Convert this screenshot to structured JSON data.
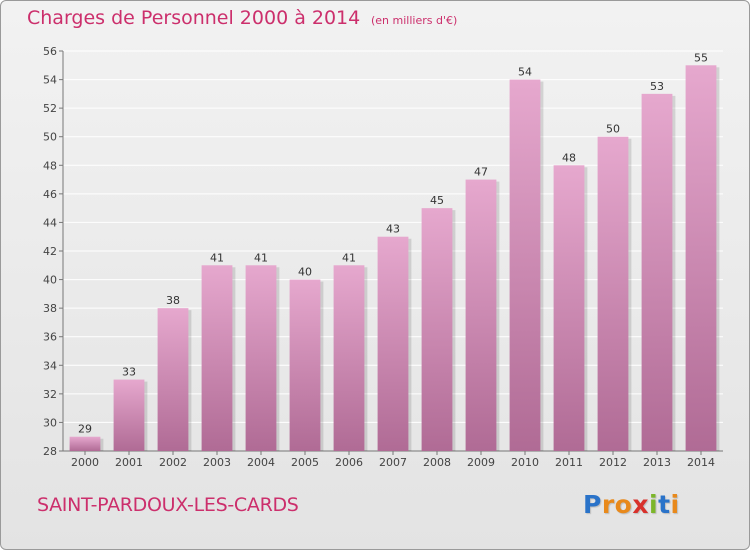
{
  "header": {
    "title": "Charges de Personnel 2000 à 2014",
    "subtitle": "(en milliers d'€)"
  },
  "footer": {
    "commune": "SAINT-PARDOUX-LES-CARDS",
    "logo_letters": [
      "P",
      "r",
      "o",
      "x",
      "i",
      "t",
      "i"
    ],
    "logo_colors": [
      "#2a73c9",
      "#e8891b",
      "#e8891b",
      "#d8312b",
      "#7cb62a",
      "#2a73c9",
      "#e8891b"
    ]
  },
  "colors": {
    "accent": "#cc2f6c",
    "bar_top": "#e6a8ce",
    "bar_bottom": "#b06b95",
    "grid": "#ffffff"
  },
  "chart_data": {
    "type": "bar",
    "title": "Charges de Personnel 2000 à 2014",
    "subtitle": "(en milliers d'€)",
    "categories": [
      "2000",
      "2001",
      "2002",
      "2003",
      "2004",
      "2005",
      "2006",
      "2007",
      "2008",
      "2009",
      "2010",
      "2011",
      "2012",
      "2013",
      "2014"
    ],
    "values": [
      29,
      33,
      38,
      41,
      41,
      40,
      41,
      43,
      45,
      47,
      54,
      48,
      50,
      53,
      55
    ],
    "data_labels": [
      "29",
      "33",
      "38",
      "41",
      "41",
      "40",
      "41",
      "43",
      "45",
      "47",
      "54",
      "48",
      "50",
      "53",
      "55"
    ],
    "yticks": [
      "28",
      "30",
      "32",
      "34",
      "36",
      "38",
      "40",
      "42",
      "44",
      "46",
      "48",
      "50",
      "52",
      "54",
      "56"
    ],
    "ylim": [
      28,
      56
    ],
    "grid": true,
    "xlabel": "",
    "ylabel": ""
  }
}
